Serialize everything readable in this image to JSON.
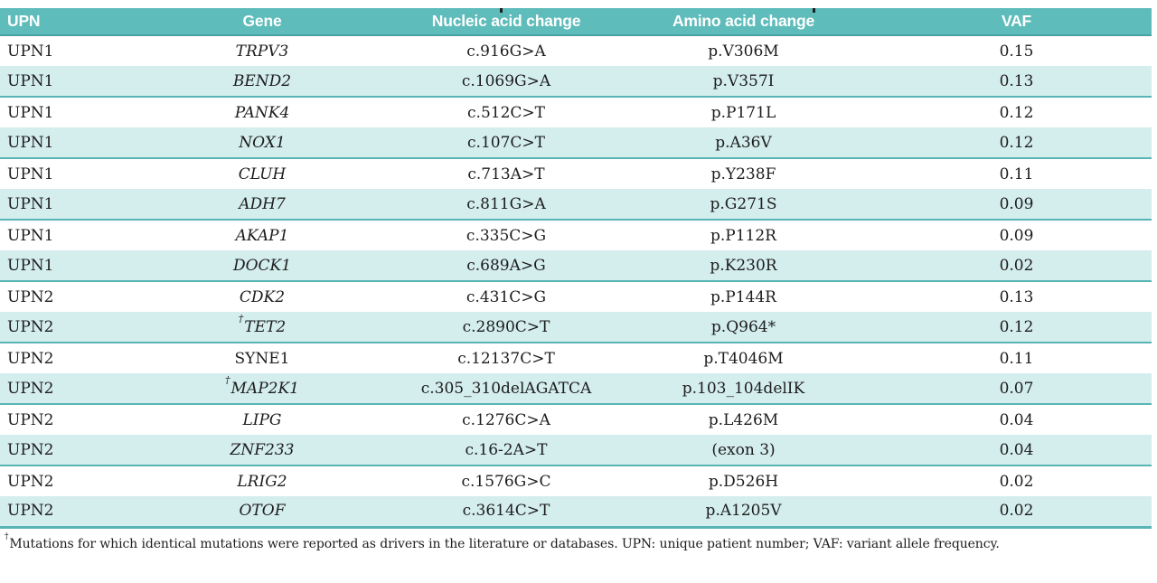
{
  "colors": {
    "header_bg": "#5ebcba",
    "header_border": "#47a2a0",
    "row_alt_bg": "#d4eded",
    "row_border": "#58b5b4",
    "header_text": "#ffffff",
    "text": "#1d1d1d"
  },
  "table": {
    "columns": [
      "UPN",
      "Gene",
      "Nucleic acid change",
      "Amino acid change",
      "VAF"
    ],
    "dagger_symbol": "†",
    "rows": [
      {
        "upn": "UPN1",
        "gene": "TRPV3",
        "italic": true,
        "dagger": false,
        "nucleic": "c.916G>A",
        "amino": "p.V306M",
        "vaf": "0.15"
      },
      {
        "upn": "UPN1",
        "gene": "BEND2",
        "italic": true,
        "dagger": false,
        "nucleic": "c.1069G>A",
        "amino": "p.V357I",
        "vaf": "0.13"
      },
      {
        "upn": "UPN1",
        "gene": "PANK4",
        "italic": true,
        "dagger": false,
        "nucleic": "c.512C>T",
        "amino": "p.P171L",
        "vaf": "0.12"
      },
      {
        "upn": "UPN1",
        "gene": "NOX1",
        "italic": true,
        "dagger": false,
        "nucleic": "c.107C>T",
        "amino": "p.A36V",
        "vaf": "0.12"
      },
      {
        "upn": "UPN1",
        "gene": "CLUH",
        "italic": true,
        "dagger": false,
        "nucleic": "c.713A>T",
        "amino": "p.Y238F",
        "vaf": "0.11"
      },
      {
        "upn": "UPN1",
        "gene": "ADH7",
        "italic": true,
        "dagger": false,
        "nucleic": "c.811G>A",
        "amino": "p.G271S",
        "vaf": "0.09"
      },
      {
        "upn": "UPN1",
        "gene": "AKAP1",
        "italic": true,
        "dagger": false,
        "nucleic": "c.335C>G",
        "amino": "p.P112R",
        "vaf": "0.09"
      },
      {
        "upn": "UPN1",
        "gene": "DOCK1",
        "italic": true,
        "dagger": false,
        "nucleic": "c.689A>G",
        "amino": "p.K230R",
        "vaf": "0.02"
      },
      {
        "upn": "UPN2",
        "gene": "CDK2",
        "italic": true,
        "dagger": false,
        "nucleic": "c.431C>G",
        "amino": "p.P144R",
        "vaf": "0.13"
      },
      {
        "upn": "UPN2",
        "gene": "TET2",
        "italic": true,
        "dagger": true,
        "nucleic": "c.2890C>T",
        "amino": "p.Q964*",
        "vaf": "0.12"
      },
      {
        "upn": "UPN2",
        "gene": "SYNE1",
        "italic": false,
        "dagger": false,
        "nucleic": "c.12137C>T",
        "amino": "p.T4046M",
        "vaf": "0.11"
      },
      {
        "upn": "UPN2",
        "gene": "MAP2K1",
        "italic": true,
        "dagger": true,
        "nucleic": "c.305_310delAGATCA",
        "amino": "p.103_104delIK",
        "vaf": "0.07"
      },
      {
        "upn": "UPN2",
        "gene": "LIPG",
        "italic": true,
        "dagger": false,
        "nucleic": "c.1276C>A",
        "amino": "p.L426M",
        "vaf": "0.04"
      },
      {
        "upn": "UPN2",
        "gene": "ZNF233",
        "italic": true,
        "dagger": false,
        "nucleic": "c.16-2A>T",
        "amino": "(exon 3)",
        "vaf": "0.04"
      },
      {
        "upn": "UPN2",
        "gene": "LRIG2",
        "italic": true,
        "dagger": false,
        "nucleic": "c.1576G>C",
        "amino": "p.D526H",
        "vaf": "0.02"
      },
      {
        "upn": "UPN2",
        "gene": "OTOF",
        "italic": true,
        "dagger": false,
        "nucleic": "c.3614C>T",
        "amino": "p.A1205V",
        "vaf": "0.02"
      }
    ],
    "footnote": {
      "dagger": "†",
      "text": "Mutations for which identical mutations were reported as drivers in the literature or databases. UPN: unique patient number; VAF: variant allele frequency."
    }
  }
}
